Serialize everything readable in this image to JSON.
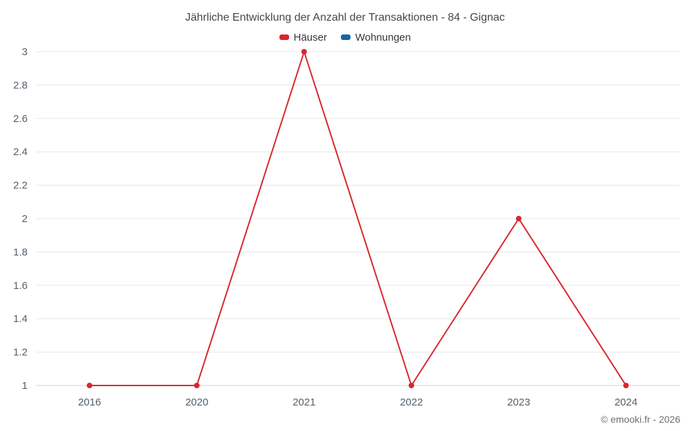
{
  "title": "Jährliche Entwicklung der Anzahl der Transaktionen - 84 - Gignac",
  "legend": [
    {
      "label": "Häuser",
      "color": "#d9262e"
    },
    {
      "label": "Wohnungen",
      "color": "#1766a3"
    }
  ],
  "footer": {
    "copyright": "© emooki.fr - 2026"
  },
  "chart_data": {
    "type": "line",
    "title": "Jährliche Entwicklung der Anzahl der Transaktionen - 84 - Gignac",
    "xlabel": "",
    "ylabel": "",
    "categories": [
      "2016",
      "2020",
      "2021",
      "2022",
      "2023",
      "2024"
    ],
    "series": [
      {
        "name": "Häuser",
        "color": "#d9262e",
        "values": [
          1,
          1,
          3,
          1,
          2,
          1
        ]
      },
      {
        "name": "Wohnungen",
        "color": "#1766a3",
        "values": []
      }
    ],
    "ylim": [
      1,
      3
    ],
    "yticks": [
      "1",
      "1.2",
      "1.4",
      "1.6",
      "1.8",
      "2",
      "2.2",
      "2.4",
      "2.6",
      "2.8",
      "3"
    ],
    "grid": true,
    "grid_color": "#e6e6e6",
    "axis_color": "#d4d4d4",
    "legend_position": "top"
  }
}
